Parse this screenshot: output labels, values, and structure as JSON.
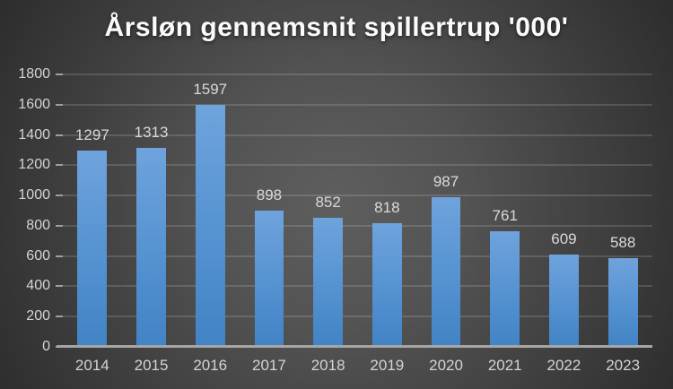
{
  "title": "Årsløn gennemsnit spillertrup '000'",
  "chart_data": {
    "type": "bar",
    "title": "Årsløn gennemsnit spillertrup '000'",
    "categories": [
      "2014",
      "2015",
      "2016",
      "2017",
      "2018",
      "2019",
      "2020",
      "2021",
      "2022",
      "2023"
    ],
    "values": [
      1297,
      1313,
      1597,
      898,
      852,
      818,
      987,
      761,
      609,
      588
    ],
    "xlabel": "",
    "ylabel": "",
    "ylim": [
      0,
      1800
    ],
    "yticks": [
      0,
      200,
      400,
      600,
      800,
      1000,
      1200,
      1400,
      1600,
      1800
    ],
    "grid": true,
    "legend": false,
    "data_labels": true,
    "colors": {
      "bar_top": "#6FA3DC",
      "bar_bottom": "#4183C5",
      "background_center": "#5e5e5e",
      "background_edge": "#242424",
      "gridline": "rgba(255,255,255,0.14)",
      "axis_line": "#a6a6a6",
      "label_text": "#d4d4d4",
      "title_text": "#fbfbfb"
    }
  }
}
